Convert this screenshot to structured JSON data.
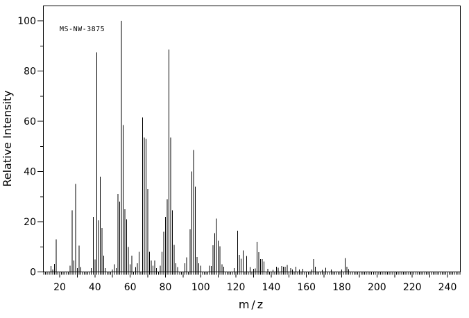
{
  "annotation": {
    "label": "MS-NW-3875"
  },
  "axes": {
    "y": {
      "title": "Relative Intensity"
    },
    "x": {
      "title": "m/z"
    }
  },
  "chart_data": {
    "type": "bar",
    "subtype": "mass-spectrum-stick-plot",
    "title": "",
    "xlabel": "m/z",
    "ylabel": "Relative Intensity",
    "annotation": "MS-NW-3875",
    "xlim": [
      11,
      247
    ],
    "ylim": [
      0,
      106
    ],
    "x_label_ticks": [
      20,
      40,
      60,
      80,
      100,
      120,
      140,
      160,
      180,
      200,
      220,
      240
    ],
    "x_medium_tick_step": 10,
    "x_minor_tick_step": 1,
    "y_major_ticks": [
      0,
      20,
      40,
      60,
      80,
      100
    ],
    "y_minor_tick_step": 10,
    "grid": false,
    "bar_color": "#000000",
    "background": "#ffffff",
    "peaks": [
      [
        15,
        2.3
      ],
      [
        16,
        1.0
      ],
      [
        17,
        3.2
      ],
      [
        18,
        13.0
      ],
      [
        26,
        2.5
      ],
      [
        27,
        24.5
      ],
      [
        28,
        4.5
      ],
      [
        29,
        35.0
      ],
      [
        30,
        1.5
      ],
      [
        31,
        10.5
      ],
      [
        32,
        2.0
      ],
      [
        38,
        1.5
      ],
      [
        39,
        22.0
      ],
      [
        40,
        5.0
      ],
      [
        41,
        87.5
      ],
      [
        42,
        20.5
      ],
      [
        43,
        38.0
      ],
      [
        44,
        17.5
      ],
      [
        45,
        6.5
      ],
      [
        46,
        1.5
      ],
      [
        50,
        1.0
      ],
      [
        51,
        3.0
      ],
      [
        52,
        1.5
      ],
      [
        53,
        31.0
      ],
      [
        54,
        28.0
      ],
      [
        55,
        100.0
      ],
      [
        56,
        58.5
      ],
      [
        57,
        25.0
      ],
      [
        58,
        21.0
      ],
      [
        59,
        10.0
      ],
      [
        60,
        3.0
      ],
      [
        61,
        6.5
      ],
      [
        63,
        2.0
      ],
      [
        64,
        3.5
      ],
      [
        65,
        8.0
      ],
      [
        67,
        61.5
      ],
      [
        68,
        53.5
      ],
      [
        69,
        53.0
      ],
      [
        70,
        33.0
      ],
      [
        71,
        8.0
      ],
      [
        72,
        4.5
      ],
      [
        73,
        2.5
      ],
      [
        74,
        4.5
      ],
      [
        75,
        1.5
      ],
      [
        77,
        2.5
      ],
      [
        78,
        8.0
      ],
      [
        79,
        16.0
      ],
      [
        80,
        22.0
      ],
      [
        81,
        29.0
      ],
      [
        82,
        88.5
      ],
      [
        83,
        53.5
      ],
      [
        84,
        24.5
      ],
      [
        85,
        10.8
      ],
      [
        86,
        3.5
      ],
      [
        87,
        2.0
      ],
      [
        91,
        3.5
      ],
      [
        92,
        5.8
      ],
      [
        94,
        17.0
      ],
      [
        95,
        40.0
      ],
      [
        96,
        48.5
      ],
      [
        97,
        34.0
      ],
      [
        98,
        6.0
      ],
      [
        99,
        3.5
      ],
      [
        100,
        2.5
      ],
      [
        105,
        2.5
      ],
      [
        106,
        2.3
      ],
      [
        107,
        10.6
      ],
      [
        108,
        15.4
      ],
      [
        109,
        21.2
      ],
      [
        110,
        12.4
      ],
      [
        111,
        10.2
      ],
      [
        112,
        3.0
      ],
      [
        113,
        2.1
      ],
      [
        119,
        1.5
      ],
      [
        121,
        16.4
      ],
      [
        122,
        6.7
      ],
      [
        123,
        5.3
      ],
      [
        124,
        8.5
      ],
      [
        126,
        6.3
      ],
      [
        128,
        1.9
      ],
      [
        130,
        1.2
      ],
      [
        131,
        1.4
      ],
      [
        132,
        12.0
      ],
      [
        133,
        7.8
      ],
      [
        134,
        5.1
      ],
      [
        135,
        5.1
      ],
      [
        136,
        4.1
      ],
      [
        138,
        1.2
      ],
      [
        141,
        0.8
      ],
      [
        143,
        2.1
      ],
      [
        144,
        1.7
      ],
      [
        146,
        2.3
      ],
      [
        147,
        2.1
      ],
      [
        148,
        2.1
      ],
      [
        149,
        2.8
      ],
      [
        151,
        1.5
      ],
      [
        152,
        1.0
      ],
      [
        154,
        2.1
      ],
      [
        156,
        0.9
      ],
      [
        158,
        1.2
      ],
      [
        163,
        1.0
      ],
      [
        164,
        5.1
      ],
      [
        165,
        2.1
      ],
      [
        169,
        0.8
      ],
      [
        171,
        1.7
      ],
      [
        174,
        1.0
      ],
      [
        180,
        1.0
      ],
      [
        182,
        5.5
      ],
      [
        183,
        2.1
      ],
      [
        184,
        1.1
      ]
    ]
  }
}
